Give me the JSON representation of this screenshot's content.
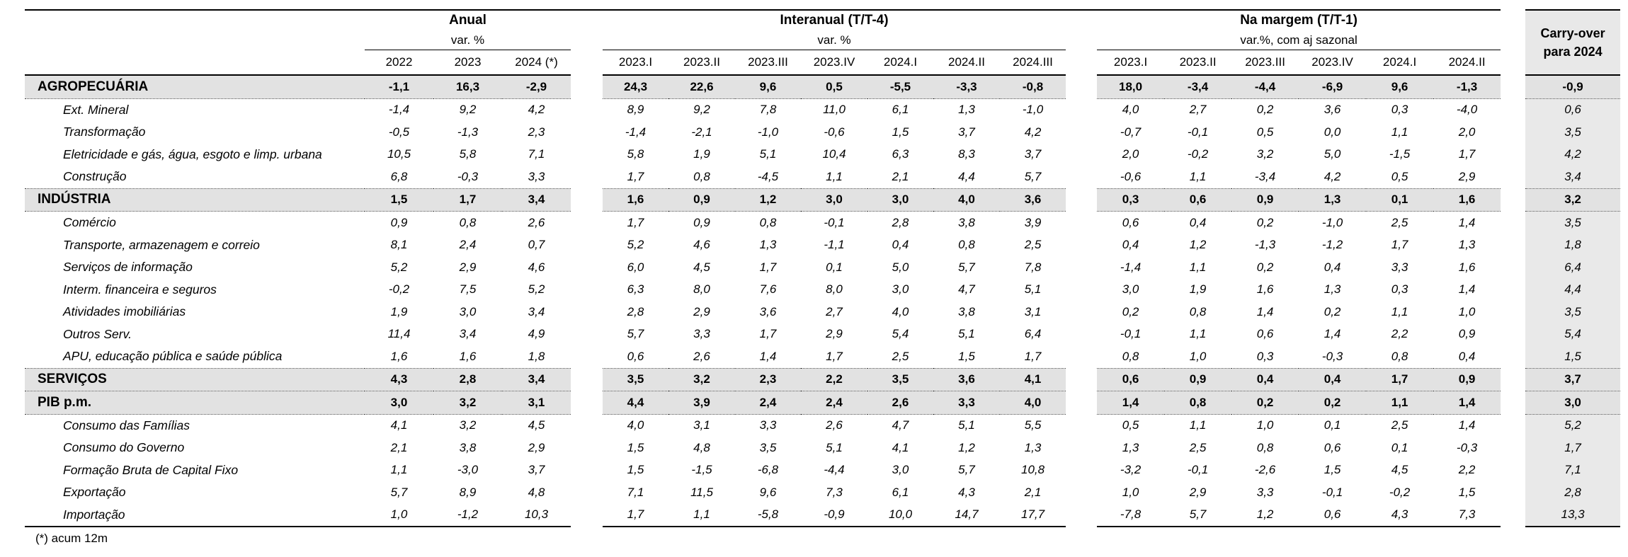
{
  "chart_data": {
    "type": "table",
    "column_groups": [
      {
        "title": "Anual",
        "subtitle": "var. %",
        "columns": [
          "2022",
          "2023",
          "2024 (*)"
        ]
      },
      {
        "title": "Interanual (T/T-4)",
        "subtitle": "var. %",
        "columns": [
          "2023.I",
          "2023.II",
          "2023.III",
          "2023.IV",
          "2024.I",
          "2024.II",
          "2024.III"
        ]
      },
      {
        "title": "Na margem (T/T-1)",
        "subtitle": "var.%, com aj sazonal",
        "columns": [
          "2023.I",
          "2023.II",
          "2023.III",
          "2023.IV",
          "2024.I",
          "2024.II"
        ]
      }
    ],
    "carryover": {
      "line1": "Carry-over",
      "line2": "para 2024"
    },
    "rows": [
      {
        "label": "AGROPECUÁRIA",
        "style": "section",
        "anual": [
          "-1,1",
          "16,3",
          "-2,9"
        ],
        "interanual": [
          "24,3",
          "22,6",
          "9,6",
          "0,5",
          "-5,5",
          "-3,3",
          "-0,8"
        ],
        "na_margem": [
          "18,0",
          "-3,4",
          "-4,4",
          "-6,9",
          "9,6",
          "-1,3"
        ],
        "carryover": "-0,9"
      },
      {
        "label": "Ext. Mineral",
        "style": "sub",
        "anual": [
          "-1,4",
          "9,2",
          "4,2"
        ],
        "interanual": [
          "8,9",
          "9,2",
          "7,8",
          "11,0",
          "6,1",
          "1,3",
          "-1,0"
        ],
        "na_margem": [
          "4,0",
          "2,7",
          "0,2",
          "3,6",
          "0,3",
          "-4,0"
        ],
        "carryover": "0,6"
      },
      {
        "label": "Transformação",
        "style": "sub",
        "anual": [
          "-0,5",
          "-1,3",
          "2,3"
        ],
        "interanual": [
          "-1,4",
          "-2,1",
          "-1,0",
          "-0,6",
          "1,5",
          "3,7",
          "4,2"
        ],
        "na_margem": [
          "-0,7",
          "-0,1",
          "0,5",
          "0,0",
          "1,1",
          "2,0"
        ],
        "carryover": "3,5"
      },
      {
        "label": "Eletricidade e gás, água, esgoto e limp. urbana",
        "style": "sub",
        "anual": [
          "10,5",
          "5,8",
          "7,1"
        ],
        "interanual": [
          "5,8",
          "1,9",
          "5,1",
          "10,4",
          "6,3",
          "8,3",
          "3,7"
        ],
        "na_margem": [
          "2,0",
          "-0,2",
          "3,2",
          "5,0",
          "-1,5",
          "1,7"
        ],
        "carryover": "4,2"
      },
      {
        "label": "Construção",
        "style": "sub",
        "anual": [
          "6,8",
          "-0,3",
          "3,3"
        ],
        "interanual": [
          "1,7",
          "0,8",
          "-4,5",
          "1,1",
          "2,1",
          "4,4",
          "5,7"
        ],
        "na_margem": [
          "-0,6",
          "1,1",
          "-3,4",
          "4,2",
          "0,5",
          "2,9"
        ],
        "carryover": "3,4"
      },
      {
        "label": "INDÚSTRIA",
        "style": "section",
        "anual": [
          "1,5",
          "1,7",
          "3,4"
        ],
        "interanual": [
          "1,6",
          "0,9",
          "1,2",
          "3,0",
          "3,0",
          "4,0",
          "3,6"
        ],
        "na_margem": [
          "0,3",
          "0,6",
          "0,9",
          "1,3",
          "0,1",
          "1,6"
        ],
        "carryover": "3,2"
      },
      {
        "label": "Comércio",
        "style": "sub",
        "anual": [
          "0,9",
          "0,8",
          "2,6"
        ],
        "interanual": [
          "1,7",
          "0,9",
          "0,8",
          "-0,1",
          "2,8",
          "3,8",
          "3,9"
        ],
        "na_margem": [
          "0,6",
          "0,4",
          "0,2",
          "-1,0",
          "2,5",
          "1,4"
        ],
        "carryover": "3,5"
      },
      {
        "label": "Transporte, armazenagem e correio",
        "style": "sub",
        "anual": [
          "8,1",
          "2,4",
          "0,7"
        ],
        "interanual": [
          "5,2",
          "4,6",
          "1,3",
          "-1,1",
          "0,4",
          "0,8",
          "2,5"
        ],
        "na_margem": [
          "0,4",
          "1,2",
          "-1,3",
          "-1,2",
          "1,7",
          "1,3"
        ],
        "carryover": "1,8"
      },
      {
        "label": "Serviços de informação",
        "style": "sub",
        "anual": [
          "5,2",
          "2,9",
          "4,6"
        ],
        "interanual": [
          "6,0",
          "4,5",
          "1,7",
          "0,1",
          "5,0",
          "5,7",
          "7,8"
        ],
        "na_margem": [
          "-1,4",
          "1,1",
          "0,2",
          "0,4",
          "3,3",
          "1,6"
        ],
        "carryover": "6,4"
      },
      {
        "label": "Interm. financeira e seguros",
        "style": "sub",
        "anual": [
          "-0,2",
          "7,5",
          "5,2"
        ],
        "interanual": [
          "6,3",
          "8,0",
          "7,6",
          "8,0",
          "3,0",
          "4,7",
          "5,1"
        ],
        "na_margem": [
          "3,0",
          "1,9",
          "1,6",
          "1,3",
          "0,3",
          "1,4"
        ],
        "carryover": "4,4"
      },
      {
        "label": "Atividades imobiliárias",
        "style": "sub",
        "anual": [
          "1,9",
          "3,0",
          "3,4"
        ],
        "interanual": [
          "2,8",
          "2,9",
          "3,6",
          "2,7",
          "4,0",
          "3,8",
          "3,1"
        ],
        "na_margem": [
          "0,2",
          "0,8",
          "1,4",
          "0,2",
          "1,1",
          "1,0"
        ],
        "carryover": "3,5"
      },
      {
        "label": "Outros Serv.",
        "style": "sub",
        "anual": [
          "11,4",
          "3,4",
          "4,9"
        ],
        "interanual": [
          "5,7",
          "3,3",
          "1,7",
          "2,9",
          "5,4",
          "5,1",
          "6,4"
        ],
        "na_margem": [
          "-0,1",
          "1,1",
          "0,6",
          "1,4",
          "2,2",
          "0,9"
        ],
        "carryover": "5,4"
      },
      {
        "label": "APU, educação pública e saúde pública",
        "style": "sub",
        "anual": [
          "1,6",
          "1,6",
          "1,8"
        ],
        "interanual": [
          "0,6",
          "2,6",
          "1,4",
          "1,7",
          "2,5",
          "1,5",
          "1,7"
        ],
        "na_margem": [
          "0,8",
          "1,0",
          "0,3",
          "-0,3",
          "0,8",
          "0,4"
        ],
        "carryover": "1,5"
      },
      {
        "label": "SERVIÇOS",
        "style": "section",
        "anual": [
          "4,3",
          "2,8",
          "3,4"
        ],
        "interanual": [
          "3,5",
          "3,2",
          "2,3",
          "2,2",
          "3,5",
          "3,6",
          "4,1"
        ],
        "na_margem": [
          "0,6",
          "0,9",
          "0,4",
          "0,4",
          "1,7",
          "0,9"
        ],
        "carryover": "3,7"
      },
      {
        "label": "PIB p.m.",
        "style": "section",
        "anual": [
          "3,0",
          "3,2",
          "3,1"
        ],
        "interanual": [
          "4,4",
          "3,9",
          "2,4",
          "2,4",
          "2,6",
          "3,3",
          "4,0"
        ],
        "na_margem": [
          "1,4",
          "0,8",
          "0,2",
          "0,2",
          "1,1",
          "1,4"
        ],
        "carryover": "3,0"
      },
      {
        "label": "Consumo das Famílias",
        "style": "sub",
        "anual": [
          "4,1",
          "3,2",
          "4,5"
        ],
        "interanual": [
          "4,0",
          "3,1",
          "3,3",
          "2,6",
          "4,7",
          "5,1",
          "5,5"
        ],
        "na_margem": [
          "0,5",
          "1,1",
          "1,0",
          "0,1",
          "2,5",
          "1,4"
        ],
        "carryover": "5,2"
      },
      {
        "label": "Consumo do Governo",
        "style": "sub",
        "anual": [
          "2,1",
          "3,8",
          "2,9"
        ],
        "interanual": [
          "1,5",
          "4,8",
          "3,5",
          "5,1",
          "4,1",
          "1,2",
          "1,3"
        ],
        "na_margem": [
          "1,3",
          "2,5",
          "0,8",
          "0,6",
          "0,1",
          "-0,3"
        ],
        "carryover": "1,7"
      },
      {
        "label": "Formação Bruta de Capital Fixo",
        "style": "sub",
        "anual": [
          "1,1",
          "-3,0",
          "3,7"
        ],
        "interanual": [
          "1,5",
          "-1,5",
          "-6,8",
          "-4,4",
          "3,0",
          "5,7",
          "10,8"
        ],
        "na_margem": [
          "-3,2",
          "-0,1",
          "-2,6",
          "1,5",
          "4,5",
          "2,2"
        ],
        "carryover": "7,1"
      },
      {
        "label": "Exportação",
        "style": "sub",
        "anual": [
          "5,7",
          "8,9",
          "4,8"
        ],
        "interanual": [
          "7,1",
          "11,5",
          "9,6",
          "7,3",
          "6,1",
          "4,3",
          "2,1"
        ],
        "na_margem": [
          "1,0",
          "2,9",
          "3,3",
          "-0,1",
          "-0,2",
          "1,5"
        ],
        "carryover": "2,8"
      },
      {
        "label": "Importação",
        "style": "sub",
        "anual": [
          "1,0",
          "-1,2",
          "10,3"
        ],
        "interanual": [
          "1,7",
          "1,1",
          "-5,8",
          "-0,9",
          "10,0",
          "14,7",
          "17,7"
        ],
        "na_margem": [
          "-7,8",
          "5,7",
          "1,2",
          "0,6",
          "4,3",
          "7,3"
        ],
        "carryover": "13,3"
      }
    ],
    "footnote": "(*) acum 12m",
    "layout": {
      "grid": false,
      "legend": "none"
    }
  },
  "colors": {
    "section_row_bg": "#e2e2e2",
    "carryover_col_bg": "#e9e9e9",
    "border": "#000000"
  }
}
